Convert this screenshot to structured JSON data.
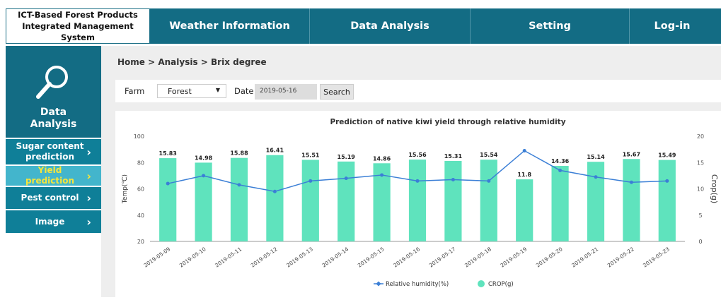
{
  "header": {
    "logo": [
      "ICT-Based Forest Products",
      "Integrated Management System"
    ],
    "nav": [
      "Weather Information",
      "Data Analysis",
      "Setting",
      "Log-in"
    ]
  },
  "sidebar": {
    "title": "Data Analysis",
    "menu": [
      "Sugar content prediction",
      "Yield prediction",
      "Pest control",
      "Image"
    ]
  },
  "breadcrumb": "Home > Analysis > Brix degree",
  "filter": {
    "farm_label": "Farm",
    "farm_value": "Forest",
    "date_label": "Date",
    "date_value": "2019-05-16",
    "button": "Search"
  },
  "chart_data": {
    "type": "bar",
    "title": "Prediction of native kiwi yield through relative humidity",
    "y_label": "Temp(℃)",
    "y2_label": "Crop(g)",
    "categories": [
      "2019-05-09",
      "2019-05-10",
      "2019-05-11",
      "2019-05-12",
      "2019-05-13",
      "2019-05-14",
      "2019-05-15",
      "2019-05-16",
      "2019-05-17",
      "2019-05-18",
      "2019-05-19",
      "2019-05-20",
      "2019-05-21",
      "2019-05-22",
      "2019-05-23"
    ],
    "series": [
      {
        "name": "Relative humidity(%)",
        "type": "line",
        "color": "#3b7fd6",
        "values": [
          64,
          70,
          63,
          58,
          66,
          68,
          70.5,
          66,
          67,
          66,
          89,
          74,
          69,
          65,
          66
        ]
      },
      {
        "name": "CROP(g)",
        "type": "bar",
        "axis": "y2",
        "color": "#5fe3bd",
        "values": [
          15.83,
          14.98,
          15.88,
          16.41,
          15.51,
          15.19,
          14.86,
          15.56,
          15.31,
          15.54,
          11.8,
          14.36,
          15.14,
          15.67,
          15.49
        ]
      }
    ],
    "ylim": [
      20,
      100
    ],
    "yticks": [
      20,
      40,
      60,
      80,
      100
    ],
    "y2lim": [
      0,
      20
    ],
    "y2ticks": [
      0,
      5,
      10,
      15,
      20
    ],
    "grid": false
  }
}
